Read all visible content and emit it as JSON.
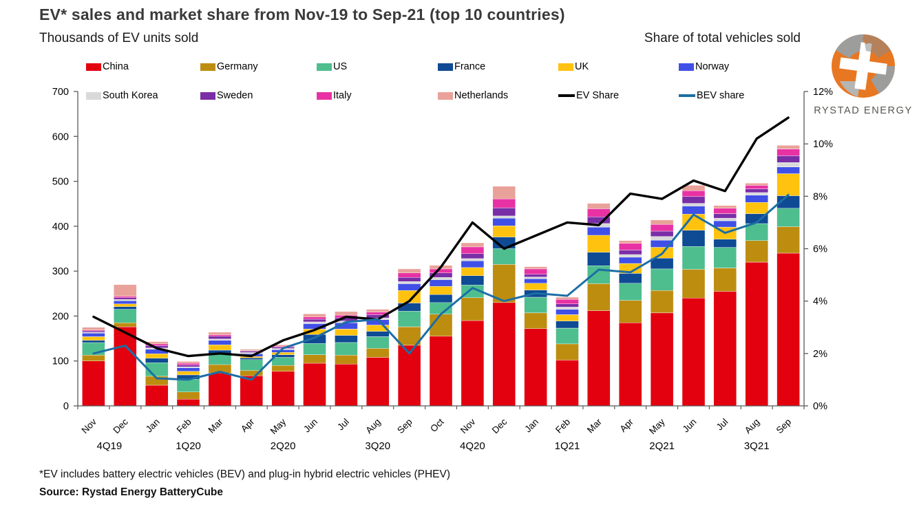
{
  "title": "EV* sales and market share from Nov-19 to Sep-21 (top 10 countries)",
  "left_axis_title": "Thousands of EV units sold",
  "right_axis_title": "Share of total vehicles sold",
  "footnote": "*EV includes battery electric vehicles (BEV) and plug-in hybrid electric vehicles (PHEV)",
  "source": "Source: Rystad Energy BatteryCube",
  "logo": {
    "text": "RYSTAD ENERGY",
    "globe_orange": "#e87722",
    "globe_gray": "#9d9d9c"
  },
  "chart_data": {
    "type": "bar",
    "subtype": "stacked-bars-with-two-lines",
    "x_labels": [
      "Nov",
      "Dec",
      "Jan",
      "Feb",
      "Mar",
      "Apr",
      "May",
      "Jun",
      "Jul",
      "Aug",
      "Sep",
      "Oct",
      "Nov",
      "Dec",
      "Jan",
      "Feb",
      "Mar",
      "Apr",
      "May",
      "Jun",
      "Jul",
      "Aug",
      "Sep"
    ],
    "quarters": [
      {
        "label": "4Q19",
        "from": 0,
        "to": 1
      },
      {
        "label": "1Q20",
        "from": 2,
        "to": 4
      },
      {
        "label": "2Q20",
        "from": 5,
        "to": 7
      },
      {
        "label": "3Q20",
        "from": 8,
        "to": 10
      },
      {
        "label": "4Q20",
        "from": 11,
        "to": 13
      },
      {
        "label": "1Q21",
        "from": 14,
        "to": 16
      },
      {
        "label": "2Q21",
        "from": 17,
        "to": 19
      },
      {
        "label": "3Q21",
        "from": 20,
        "to": 22
      }
    ],
    "left_axis": {
      "min": 0,
      "max": 700,
      "step": 100,
      "tick_labels": [
        "0",
        "100",
        "200",
        "300",
        "400",
        "500",
        "600",
        "700"
      ]
    },
    "right_axis": {
      "min": 0,
      "max": 12,
      "step": 2,
      "tick_labels": [
        "0%",
        "2%",
        "4%",
        "6%",
        "8%",
        "10%",
        "12%"
      ]
    },
    "grid": "off",
    "legend_position": "top",
    "series": [
      {
        "name": "China",
        "color": "#e3000f",
        "values": [
          100,
          176,
          46,
          15,
          73,
          67,
          77,
          95,
          93,
          108,
          135,
          155,
          190,
          230,
          172,
          102,
          212,
          185,
          207,
          240,
          255,
          320,
          340
        ]
      },
      {
        "name": "Germany",
        "color": "#bd8d10",
        "values": [
          13,
          9,
          20,
          16,
          19,
          12,
          13,
          19,
          20,
          20,
          41,
          49,
          51,
          85,
          35,
          36,
          60,
          50,
          50,
          64,
          52,
          48,
          59
        ]
      },
      {
        "name": "US",
        "color": "#4ebe8e",
        "values": [
          28,
          30,
          30,
          28,
          24,
          24,
          18,
          25,
          28,
          26,
          35,
          26,
          28,
          35,
          35,
          35,
          40,
          38,
          48,
          51,
          46,
          38,
          41
        ]
      },
      {
        "name": "France",
        "color": "#0f4a94",
        "values": [
          5,
          6,
          10,
          10,
          8,
          4,
          6,
          20,
          16,
          12,
          18,
          18,
          21,
          26,
          16,
          16,
          30,
          22,
          24,
          36,
          18,
          22,
          28
        ]
      },
      {
        "name": "UK",
        "color": "#ffc20e",
        "values": [
          8,
          6,
          10,
          8,
          12,
          3,
          5,
          12,
          14,
          14,
          28,
          18,
          18,
          25,
          15,
          14,
          38,
          22,
          24,
          36,
          27,
          25,
          49
        ]
      },
      {
        "name": "Norway",
        "color": "#4050e6",
        "values": [
          8,
          7,
          10,
          8,
          10,
          6,
          6,
          12,
          14,
          12,
          15,
          15,
          15,
          17,
          10,
          12,
          18,
          14,
          16,
          18,
          14,
          16,
          15
        ]
      },
      {
        "name": "South Korea",
        "color": "#d9d9d9",
        "values": [
          2,
          3,
          3,
          2,
          3,
          3,
          3,
          4,
          4,
          4,
          5,
          5,
          5,
          5,
          4,
          5,
          8,
          6,
          8,
          6,
          6,
          6,
          10
        ]
      },
      {
        "name": "Sweden",
        "color": "#7a2ea6",
        "values": [
          3,
          4,
          5,
          4,
          6,
          3,
          3,
          6,
          7,
          7,
          9,
          10,
          11,
          18,
          6,
          7,
          15,
          10,
          12,
          15,
          10,
          8,
          15
        ]
      },
      {
        "name": "Italy",
        "color": "#e832a4",
        "values": [
          2,
          3,
          4,
          4,
          3,
          1,
          2,
          5,
          6,
          6,
          10,
          9,
          15,
          20,
          12,
          10,
          18,
          15,
          15,
          13,
          12,
          8,
          15
        ]
      },
      {
        "name": "Netherlands",
        "color": "#e9a29a",
        "values": [
          6,
          26,
          5,
          4,
          6,
          3,
          3,
          7,
          8,
          6,
          9,
          8,
          9,
          28,
          5,
          5,
          12,
          6,
          10,
          12,
          6,
          5,
          8
        ]
      }
    ],
    "line_series": [
      {
        "name": "EV Share",
        "color": "#000000",
        "axis": "right",
        "values": [
          3.4,
          2.8,
          2.2,
          1.9,
          2.0,
          1.9,
          2.5,
          2.9,
          3.4,
          3.3,
          4.0,
          5.3,
          7.0,
          6.0,
          6.5,
          7.0,
          6.9,
          8.1,
          7.9,
          8.6,
          8.2,
          10.2,
          11.0
        ]
      },
      {
        "name": "BEV share",
        "color": "#1c6ea4",
        "axis": "right",
        "values": [
          2.0,
          2.3,
          1.05,
          1.0,
          1.3,
          1.0,
          2.2,
          2.6,
          3.2,
          3.3,
          2.0,
          3.5,
          4.5,
          4.0,
          4.3,
          4.2,
          5.2,
          5.1,
          5.8,
          7.3,
          6.6,
          7.0,
          8.05
        ]
      }
    ]
  }
}
